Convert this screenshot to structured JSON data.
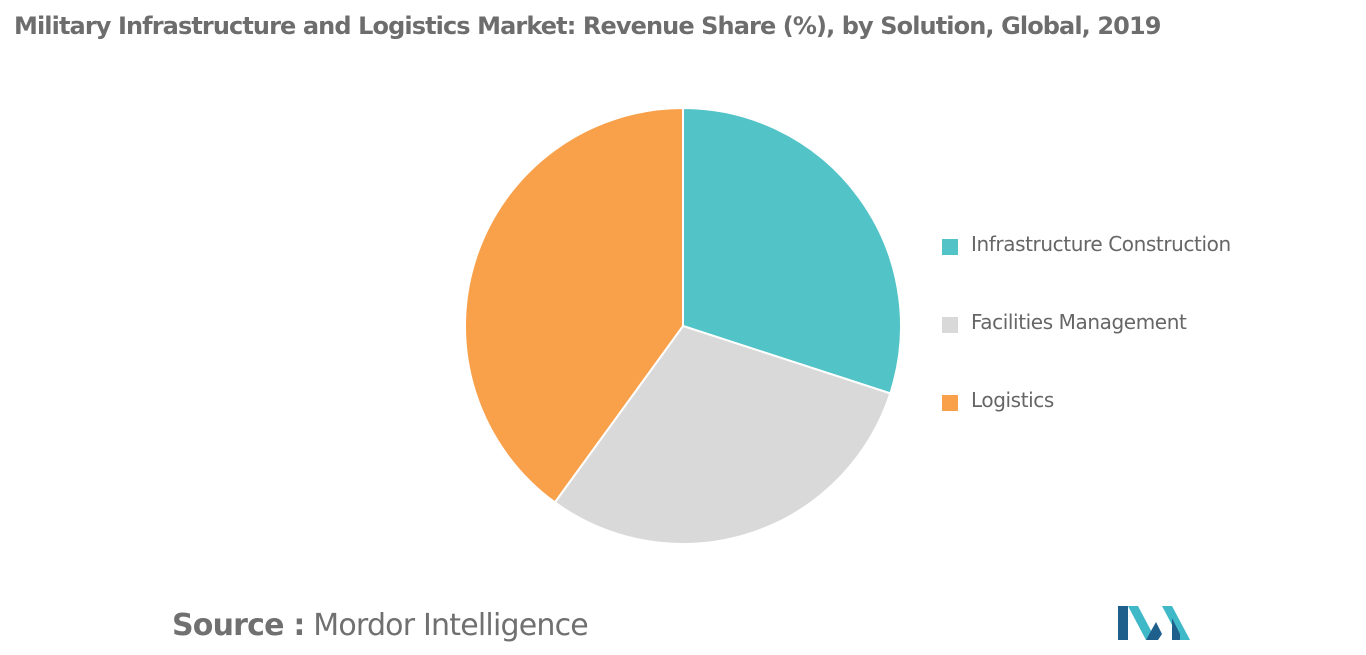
{
  "header": {
    "title": "Military Infrastructure and Logistics Market: Revenue Share (%), by Solution, Global, 2019"
  },
  "chart_data": {
    "type": "pie",
    "title": "Military Infrastructure and Logistics Market: Revenue Share (%), by Solution, Global, 2019",
    "start": "12 o'clock",
    "direction": "clockwise",
    "legend_position": "right",
    "slices": [
      {
        "label": "Infrastructure Construction",
        "value": 30,
        "color": "#52c3c7"
      },
      {
        "label": "Facilities Management",
        "value": 30,
        "color": "#d9d9d9"
      },
      {
        "label": "Logistics",
        "value": 40,
        "color": "#f9a04b"
      }
    ]
  },
  "legend": {
    "items": [
      {
        "label": "Infrastructure Construction",
        "color": "#52c3c7"
      },
      {
        "label": "Facilities Management",
        "color": "#d9d9d9"
      },
      {
        "label": "Logistics",
        "color": "#f9a04b"
      }
    ]
  },
  "footer": {
    "source_label": "Source :",
    "source_value": "Mordor Intelligence",
    "logo_icon": "mordor-intelligence-logo-icon",
    "logo_colors": [
      "#1e5f8c",
      "#3fb8c7"
    ]
  }
}
